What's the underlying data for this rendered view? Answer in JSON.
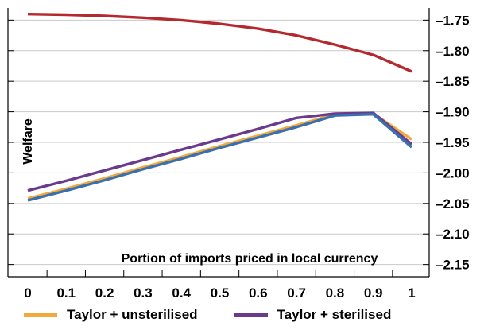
{
  "chart_data": {
    "type": "line",
    "xlabel": "Portion of imports priced in local currency",
    "ylabel": "Welfare",
    "x": [
      0,
      0.1,
      0.2,
      0.3,
      0.4,
      0.5,
      0.6,
      0.7,
      0.8,
      0.9,
      1
    ],
    "x_tick_labels": [
      "0",
      "0.1",
      "0.2",
      "0.3",
      "0.4",
      "0.5",
      "0.6",
      "0.7",
      "0.8",
      "0.9",
      "1"
    ],
    "ylim": [
      -2.17,
      -1.73
    ],
    "y_ticks": [
      -1.75,
      -1.8,
      -1.85,
      -1.9,
      -1.95,
      -2.0,
      -2.05,
      -2.1,
      -2.15
    ],
    "y_tick_labels": [
      "–1.75",
      "–1.80",
      "–1.85",
      "–1.90",
      "–1.95",
      "–2.00",
      "–2.05",
      "–2.10",
      "–2.15"
    ],
    "grid": true,
    "legend_position": "bottom",
    "series": [
      {
        "name": "Taylor + unsterilised",
        "color": "#f2a93b",
        "values": [
          -2.042,
          -2.026,
          -2.009,
          -1.991,
          -1.974,
          -1.956,
          -1.939,
          -1.922,
          -1.904,
          -1.903,
          -1.945
        ]
      },
      {
        "name": "Taylor + sterilised",
        "color": "#6a3a8c",
        "values": [
          -2.029,
          -2.013,
          -1.996,
          -1.979,
          -1.962,
          -1.945,
          -1.928,
          -1.91,
          -1.903,
          -1.902,
          -1.953
        ]
      },
      {
        "name": "",
        "color": "#3a6fb0",
        "values": [
          -2.045,
          -2.029,
          -2.012,
          -1.994,
          -1.977,
          -1.959,
          -1.942,
          -1.925,
          -1.906,
          -1.904,
          -1.958
        ]
      },
      {
        "name": "",
        "color": "#b5292e",
        "values": [
          -1.74,
          -1.741,
          -1.743,
          -1.746,
          -1.75,
          -1.756,
          -1.764,
          -1.775,
          -1.79,
          -1.807,
          -1.834
        ]
      }
    ]
  }
}
